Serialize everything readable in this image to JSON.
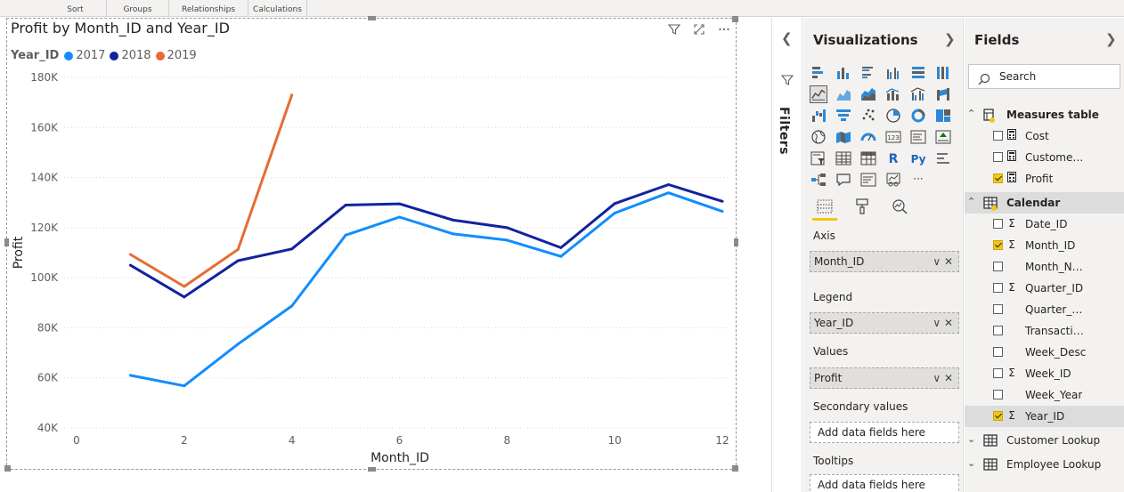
{
  "ribbon": {
    "groups": [
      "Sort",
      "Groups",
      "Relationships",
      "Calculations"
    ]
  },
  "visual": {
    "title": "Profit by Month_ID and Year_ID",
    "legend_title": "Year_ID",
    "header_icons": [
      "filter-icon",
      "focus-mode-icon",
      "more-options-icon"
    ]
  },
  "chart_data": {
    "type": "line",
    "title": "Profit by Month_ID and Year_ID",
    "xlabel": "Month_ID",
    "ylabel": "Profit",
    "xlim": [
      0,
      12
    ],
    "ylim": [
      40000,
      180000
    ],
    "x_ticks": [
      0,
      2,
      4,
      6,
      8,
      10,
      12
    ],
    "y_ticks": [
      40000,
      60000,
      80000,
      100000,
      120000,
      140000,
      160000,
      180000
    ],
    "y_tick_labels": [
      "40K",
      "60K",
      "80K",
      "100K",
      "120K",
      "140K",
      "160K",
      "180K"
    ],
    "grid": "horizontal-dotted",
    "legend_position": "top-left",
    "series": [
      {
        "name": "2017",
        "color": "#118dff",
        "x": [
          1,
          2,
          3,
          4,
          5,
          6,
          7,
          8,
          9,
          10,
          11,
          12
        ],
        "y": [
          61000,
          56800,
          73500,
          88700,
          117000,
          124200,
          117500,
          115000,
          108500,
          125800,
          133900,
          126500
        ]
      },
      {
        "name": "2018",
        "color": "#12239e",
        "x": [
          1,
          2,
          3,
          4,
          5,
          6,
          7,
          8,
          9,
          10,
          11,
          12
        ],
        "y": [
          105000,
          92300,
          106800,
          111500,
          129000,
          129500,
          123000,
          120000,
          112000,
          129600,
          137200,
          130500
        ]
      },
      {
        "name": "2019",
        "color": "#e66c37",
        "x": [
          1,
          2,
          3,
          4
        ],
        "y": [
          109300,
          96500,
          111300,
          173000
        ]
      }
    ]
  },
  "filters": {
    "label": "Filters"
  },
  "visualizations": {
    "title": "Visualizations",
    "icons": [
      "stacked-bar-chart-icon",
      "stacked-column-chart-icon",
      "clustered-bar-chart-icon",
      "clustered-column-chart-icon",
      "100-stacked-bar-chart-icon",
      "100-stacked-column-chart-icon",
      "line-chart-icon",
      "area-chart-icon",
      "stacked-area-chart-icon",
      "line-and-stacked-column-chart-icon",
      "line-and-clustered-column-chart-icon",
      "ribbon-chart-icon",
      "waterfall-chart-icon",
      "funnel-chart-icon",
      "scatter-chart-icon",
      "pie-chart-icon",
      "donut-chart-icon",
      "treemap-icon",
      "map-icon",
      "filled-map-icon",
      "gauge-icon",
      "card-icon",
      "multi-row-card-icon",
      "kpi-icon",
      "slicer-icon",
      "table-icon",
      "matrix-icon",
      "r-script-visual-icon",
      "python-visual-icon",
      "key-influencers-icon",
      "decomposition-tree-icon",
      "qa-icon",
      "smart-narrative-icon",
      "paginated-report-icon",
      "more-visuals-icon"
    ],
    "selected_icon": "line-chart-icon",
    "r_glyph": "R",
    "py_glyph": "Py",
    "more_glyph": "···",
    "card_glyph": "123",
    "tabs": [
      "fields-tab-icon",
      "format-tab-icon",
      "analytics-tab-icon"
    ],
    "wells": {
      "axis_label": "Axis",
      "axis_field": "Month_ID",
      "legend_label": "Legend",
      "legend_field": "Year_ID",
      "values_label": "Values",
      "values_field": "Profit",
      "secondary_label": "Secondary values",
      "secondary_placeholder": "Add data fields here",
      "tooltips_label": "Tooltips",
      "tooltips_placeholder": "Add data fields here"
    }
  },
  "fields": {
    "title": "Fields",
    "search_placeholder": "Search",
    "tables": [
      {
        "name": "Measures table",
        "expanded": true,
        "items": [
          {
            "name": "Cost",
            "type": "measure",
            "checked": false
          },
          {
            "name": "Customer s...",
            "type": "measure",
            "checked": false
          },
          {
            "name": "Profit",
            "type": "measure",
            "checked": true
          }
        ]
      },
      {
        "name": "Calendar",
        "expanded": true,
        "items": [
          {
            "name": "Date_ID",
            "type": "sigma",
            "checked": false
          },
          {
            "name": "Month_ID",
            "type": "sigma",
            "checked": true
          },
          {
            "name": "Month_Na...",
            "type": "text",
            "checked": false
          },
          {
            "name": "Quarter_ID",
            "type": "sigma",
            "checked": false
          },
          {
            "name": "Quarter_Na...",
            "type": "text",
            "checked": false
          },
          {
            "name": "Transaction...",
            "type": "text",
            "checked": false
          },
          {
            "name": "Week_Desc",
            "type": "text",
            "checked": false
          },
          {
            "name": "Week_ID",
            "type": "sigma",
            "checked": false
          },
          {
            "name": "Week_Year",
            "type": "text",
            "checked": false
          },
          {
            "name": "Year_ID",
            "type": "sigma",
            "checked": true
          }
        ]
      },
      {
        "name": "Customer Lookup",
        "expanded": false,
        "items": []
      },
      {
        "name": "Employee Lookup",
        "expanded": false,
        "items": []
      }
    ]
  },
  "colors": {
    "accent_yellow": "#f2c811",
    "pane_bg": "#f3f2f1"
  }
}
